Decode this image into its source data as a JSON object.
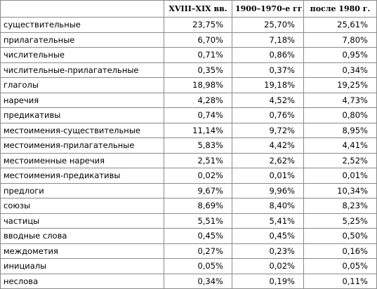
{
  "table": {
    "headers": [
      "",
      "XVIII–XIX вв.",
      "1900–1970-е гг.",
      "после 1980 г."
    ],
    "rows": [
      {
        "label": "существительные",
        "values": [
          "23,75%",
          "25,70%",
          "25,61%"
        ]
      },
      {
        "label": "прилагательные",
        "values": [
          "6,70%",
          "7,18%",
          "7,80%"
        ]
      },
      {
        "label": "числительные",
        "values": [
          "0,71%",
          "0,86%",
          "0,95%"
        ]
      },
      {
        "label": "числительные-прилагательные",
        "values": [
          "0,35%",
          "0,37%",
          "0,34%"
        ]
      },
      {
        "label": "глаголы",
        "values": [
          "18,98%",
          "19,18%",
          "19,25%"
        ]
      },
      {
        "label": "наречия",
        "values": [
          "4,28%",
          "4,52%",
          "4,73%"
        ]
      },
      {
        "label": "предикативы",
        "values": [
          "0,74%",
          "0,76%",
          "0,80%"
        ]
      },
      {
        "label": "местоимения-существительные",
        "values": [
          "11,14%",
          "9,72%",
          "8,95%"
        ]
      },
      {
        "label": "местоимения-прилагательные",
        "values": [
          "5,83%",
          "4,42%",
          "4,41%"
        ]
      },
      {
        "label": "местоименные наречия",
        "values": [
          "2,51%",
          "2,62%",
          "2,52%"
        ]
      },
      {
        "label": "местоимения-предикативы",
        "values": [
          "0,02%",
          "0,01%",
          "0,01%"
        ]
      },
      {
        "label": "предлоги",
        "values": [
          "9,67%",
          "9,96%",
          "10,34%"
        ]
      },
      {
        "label": "союзы",
        "values": [
          "8,69%",
          "8,40%",
          "8,23%"
        ]
      },
      {
        "label": "частицы",
        "values": [
          "5,51%",
          "5,41%",
          "5,25%"
        ]
      },
      {
        "label": "вводные слова",
        "values": [
          "0,45%",
          "0,45%",
          "0,50%"
        ]
      },
      {
        "label": "междометия",
        "values": [
          "0,27%",
          "0,23%",
          "0,16%"
        ]
      },
      {
        "label": "инициалы",
        "values": [
          "0,05%",
          "0,02%",
          "0,05%"
        ]
      },
      {
        "label": "неслова",
        "values": [
          "0,34%",
          "0,19%",
          "0,11%"
        ]
      }
    ]
  }
}
